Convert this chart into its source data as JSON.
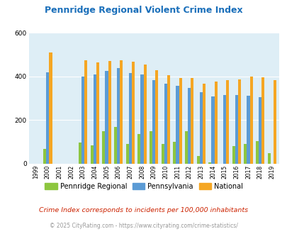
{
  "title": "Pennridge Regional Violent Crime Index",
  "years": [
    1999,
    2000,
    2001,
    2002,
    2003,
    2004,
    2005,
    2006,
    2007,
    2008,
    2009,
    2010,
    2011,
    2012,
    2013,
    2014,
    2015,
    2016,
    2017,
    2018,
    2019
  ],
  "pennridge": [
    0,
    68,
    0,
    0,
    97,
    85,
    150,
    168,
    90,
    135,
    150,
    90,
    100,
    148,
    35,
    8,
    0,
    82,
    90,
    105,
    50
  ],
  "pennsylvania": [
    0,
    420,
    0,
    0,
    400,
    410,
    425,
    438,
    415,
    408,
    383,
    368,
    357,
    348,
    328,
    308,
    315,
    315,
    312,
    305,
    0
  ],
  "national": [
    0,
    510,
    0,
    0,
    475,
    465,
    472,
    475,
    468,
    455,
    430,
    405,
    392,
    392,
    368,
    377,
    383,
    387,
    400,
    397,
    383
  ],
  "pennridge_color": "#8dc63f",
  "pennsylvania_color": "#5b9bd5",
  "national_color": "#f5a623",
  "bg_color": "#deeef6",
  "ylim": [
    0,
    600
  ],
  "yticks": [
    0,
    200,
    400,
    600
  ],
  "subtitle": "Crime Index corresponds to incidents per 100,000 inhabitants",
  "footer": "© 2025 CityRating.com - https://www.cityrating.com/crime-statistics/",
  "title_color": "#1a6fba",
  "subtitle_color": "#cc2200",
  "footer_color": "#999999"
}
